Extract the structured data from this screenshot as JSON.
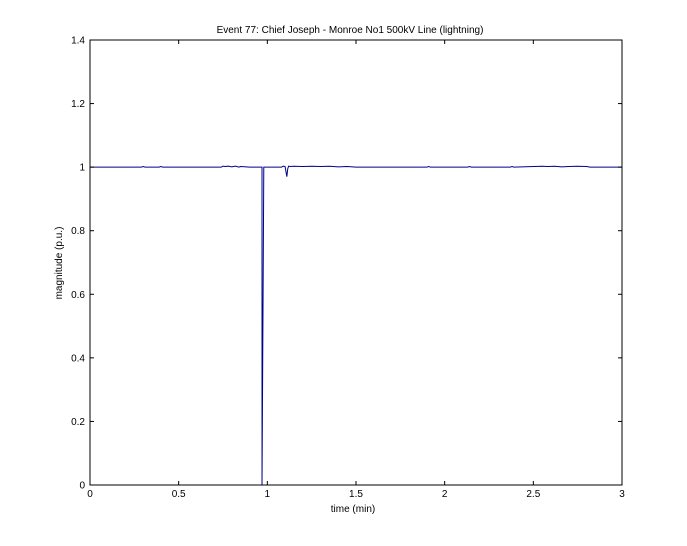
{
  "chart_data": {
    "type": "line",
    "title": "Event 77: Chief Joseph - Monroe No1 500kV Line (lightning)",
    "xlabel": "time (min)",
    "ylabel": "magnitude (p.u.)",
    "xlim": [
      0,
      3
    ],
    "ylim": [
      0,
      1.4
    ],
    "xticks": [
      0,
      0.5,
      1,
      1.5,
      2,
      2.5,
      3
    ],
    "xtick_labels": [
      "0",
      "0.5",
      "1",
      "1.5",
      "2",
      "2.5",
      "3"
    ],
    "yticks": [
      0,
      0.2,
      0.4,
      0.6,
      0.8,
      1,
      1.2,
      1.4
    ],
    "ytick_labels": [
      "0",
      "0.2",
      "0.4",
      "0.6",
      "0.8",
      "1",
      "1.2",
      "1.4"
    ],
    "grid": false,
    "line_color": "#00008b",
    "series": [
      {
        "x": [
          0,
          0.29,
          0.3,
          0.31,
          0.39,
          0.4,
          0.41,
          0.74,
          0.75,
          0.76,
          0.78,
          0.8,
          0.82,
          0.84,
          0.85,
          0.9,
          0.97,
          0.97,
          0.98,
          1.08,
          1.09,
          1.1,
          1.11,
          1.115,
          1.12,
          1.13,
          1.15,
          1.2,
          1.25,
          1.3,
          1.35,
          1.4,
          1.45,
          1.5,
          1.9,
          1.91,
          1.92,
          2.13,
          2.14,
          2.15,
          2.37,
          2.38,
          2.39,
          2.55,
          2.58,
          2.62,
          2.66,
          2.7,
          2.75,
          2.8,
          2.82,
          3
        ],
        "y": [
          1,
          1,
          1.002,
          1,
          1,
          1.002,
          1,
          1,
          1.003,
          1.002,
          1.003,
          1.001,
          1.003,
          1,
          1.002,
          1,
          1,
          0,
          1,
          1,
          1.003,
          1.002,
          0.97,
          0.995,
          1.003,
          1.002,
          1.003,
          1.002,
          1.003,
          1.002,
          1.003,
          1.001,
          1.002,
          1,
          1,
          1.002,
          1,
          1,
          1.002,
          1,
          1,
          1.002,
          1,
          1.003,
          1.002,
          1.003,
          1.001,
          1.002,
          1.003,
          1.002,
          1,
          1
        ]
      }
    ]
  }
}
